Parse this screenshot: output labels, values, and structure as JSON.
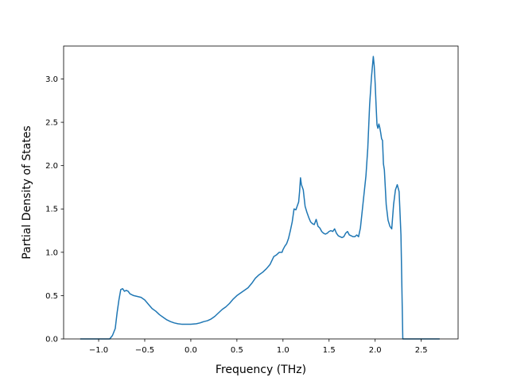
{
  "chart_data": {
    "type": "line",
    "title": "",
    "xlabel": "Frequency (THz)",
    "ylabel": "Partial Density of States",
    "xlim": [
      -1.38,
      2.9
    ],
    "ylim": [
      0.0,
      3.38
    ],
    "grid": false,
    "x_ticks": [
      -1.0,
      -0.5,
      0.0,
      0.5,
      1.0,
      1.5,
      2.0,
      2.5
    ],
    "x_tick_labels": [
      "−1.0",
      "−0.5",
      "0.0",
      "0.5",
      "1.0",
      "1.5",
      "2.0",
      "2.5"
    ],
    "y_ticks": [
      0.0,
      0.5,
      1.0,
      1.5,
      2.0,
      2.5,
      3.0
    ],
    "y_tick_labels": [
      "0.0",
      "0.5",
      "1.0",
      "1.5",
      "2.0",
      "2.5",
      "3.0"
    ],
    "series": [
      {
        "color": "#1f77b4",
        "x": [
          -1.2,
          -0.88,
          -0.85,
          -0.82,
          -0.8,
          -0.78,
          -0.76,
          -0.74,
          -0.72,
          -0.7,
          -0.68,
          -0.66,
          -0.62,
          -0.58,
          -0.54,
          -0.5,
          -0.46,
          -0.42,
          -0.38,
          -0.34,
          -0.3,
          -0.26,
          -0.22,
          -0.18,
          -0.14,
          -0.1,
          -0.06,
          0.0,
          0.06,
          0.1,
          0.14,
          0.18,
          0.22,
          0.26,
          0.3,
          0.34,
          0.38,
          0.42,
          0.46,
          0.5,
          0.54,
          0.58,
          0.62,
          0.66,
          0.7,
          0.74,
          0.78,
          0.82,
          0.86,
          0.9,
          0.93,
          0.96,
          0.99,
          1.0,
          1.02,
          1.04,
          1.06,
          1.08,
          1.1,
          1.12,
          1.14,
          1.16,
          1.17,
          1.18,
          1.19,
          1.2,
          1.22,
          1.24,
          1.26,
          1.28,
          1.3,
          1.32,
          1.34,
          1.36,
          1.38,
          1.4,
          1.42,
          1.44,
          1.46,
          1.48,
          1.5,
          1.52,
          1.54,
          1.56,
          1.58,
          1.6,
          1.62,
          1.64,
          1.66,
          1.68,
          1.7,
          1.72,
          1.74,
          1.76,
          1.78,
          1.8,
          1.82,
          1.84,
          1.86,
          1.88,
          1.9,
          1.92,
          1.94,
          1.96,
          1.98,
          1.99,
          2.0,
          2.01,
          2.02,
          2.03,
          2.04,
          2.05,
          2.06,
          2.07,
          2.08,
          2.09,
          2.1,
          2.12,
          2.14,
          2.16,
          2.18,
          2.2,
          2.22,
          2.24,
          2.26,
          2.28,
          2.3,
          2.31,
          2.32,
          2.33,
          2.34,
          2.35,
          2.36,
          2.37,
          2.38,
          2.42,
          2.5,
          2.6,
          2.7
        ],
        "y": [
          0.0,
          0.0,
          0.04,
          0.12,
          0.3,
          0.45,
          0.57,
          0.58,
          0.55,
          0.56,
          0.55,
          0.52,
          0.5,
          0.49,
          0.48,
          0.45,
          0.4,
          0.35,
          0.32,
          0.28,
          0.25,
          0.22,
          0.2,
          0.185,
          0.175,
          0.17,
          0.17,
          0.17,
          0.175,
          0.185,
          0.2,
          0.21,
          0.23,
          0.26,
          0.3,
          0.34,
          0.37,
          0.41,
          0.46,
          0.5,
          0.53,
          0.56,
          0.59,
          0.64,
          0.7,
          0.74,
          0.77,
          0.81,
          0.86,
          0.95,
          0.97,
          1.0,
          1.0,
          1.03,
          1.07,
          1.1,
          1.16,
          1.25,
          1.35,
          1.5,
          1.49,
          1.55,
          1.58,
          1.7,
          1.86,
          1.78,
          1.72,
          1.53,
          1.46,
          1.4,
          1.35,
          1.33,
          1.32,
          1.38,
          1.3,
          1.28,
          1.24,
          1.22,
          1.21,
          1.22,
          1.24,
          1.25,
          1.24,
          1.27,
          1.22,
          1.19,
          1.18,
          1.17,
          1.18,
          1.22,
          1.24,
          1.2,
          1.19,
          1.18,
          1.18,
          1.2,
          1.18,
          1.28,
          1.48,
          1.68,
          1.88,
          2.2,
          2.7,
          3.02,
          3.26,
          3.15,
          2.95,
          2.7,
          2.47,
          2.43,
          2.48,
          2.44,
          2.38,
          2.31,
          2.29,
          2.02,
          1.95,
          1.55,
          1.37,
          1.3,
          1.27,
          1.55,
          1.72,
          1.78,
          1.7,
          1.2,
          0.0,
          0.0,
          0.0,
          0.0,
          0.0,
          0.0,
          0.0,
          0.0,
          0.0,
          0.0,
          0.0,
          0.0,
          0.0
        ]
      }
    ]
  }
}
